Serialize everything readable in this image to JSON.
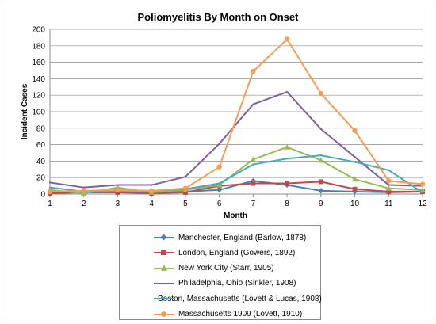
{
  "chart_data": {
    "type": "line",
    "title": "Poliomyelitis By Month on Onset",
    "xlabel": "Month",
    "ylabel": "Incident Cases",
    "x": [
      1,
      2,
      3,
      4,
      5,
      6,
      7,
      8,
      9,
      10,
      11,
      12
    ],
    "xlim": [
      1,
      12
    ],
    "ylim": [
      0,
      200
    ],
    "yticks": [
      0,
      20,
      40,
      60,
      80,
      100,
      120,
      140,
      160,
      180,
      200
    ],
    "xticks": [
      "1",
      "2",
      "3",
      "4",
      "5",
      "6",
      "7",
      "8",
      "9",
      "10",
      "11",
      "12"
    ],
    "grid": true,
    "legend_position": "bottom",
    "series": [
      {
        "name": "Manchester, England (Barlow, 1878)",
        "color": "#4a7ebb",
        "marker": "diamond",
        "values": [
          3,
          2,
          2,
          2,
          3,
          5,
          16,
          11,
          4,
          3,
          2,
          3
        ]
      },
      {
        "name": "London, England (Gowers, 1892)",
        "color": "#be4b48",
        "marker": "square",
        "values": [
          1,
          2,
          2,
          1,
          2,
          10,
          13,
          13,
          15,
          6,
          3,
          3
        ]
      },
      {
        "name": "New York City (Starr, 1905)",
        "color": "#98b954",
        "marker": "triangle",
        "values": [
          5,
          1,
          8,
          2,
          5,
          11,
          42,
          57,
          41,
          18,
          7,
          5
        ]
      },
      {
        "name": "Philadelphia, Ohio (Sinkler, 1908)",
        "color": "#7d60a0",
        "marker": "none",
        "values": [
          14,
          8,
          11,
          11,
          21,
          61,
          109,
          124,
          79,
          45,
          11,
          10
        ]
      },
      {
        "name": "Boston, Massachusetts (Lovett & Lucas, 1908)",
        "color": "#46aac5",
        "marker": "none",
        "values": [
          8,
          3,
          4,
          4,
          6,
          13,
          36,
          43,
          47,
          39,
          29,
          2
        ]
      },
      {
        "name": "Massachusetts 1909 (Lovett, 1910)",
        "color": "#f59d56",
        "marker": "circle",
        "values": [
          3,
          4,
          5,
          4,
          7,
          33,
          149,
          188,
          122,
          77,
          16,
          12
        ]
      }
    ]
  }
}
